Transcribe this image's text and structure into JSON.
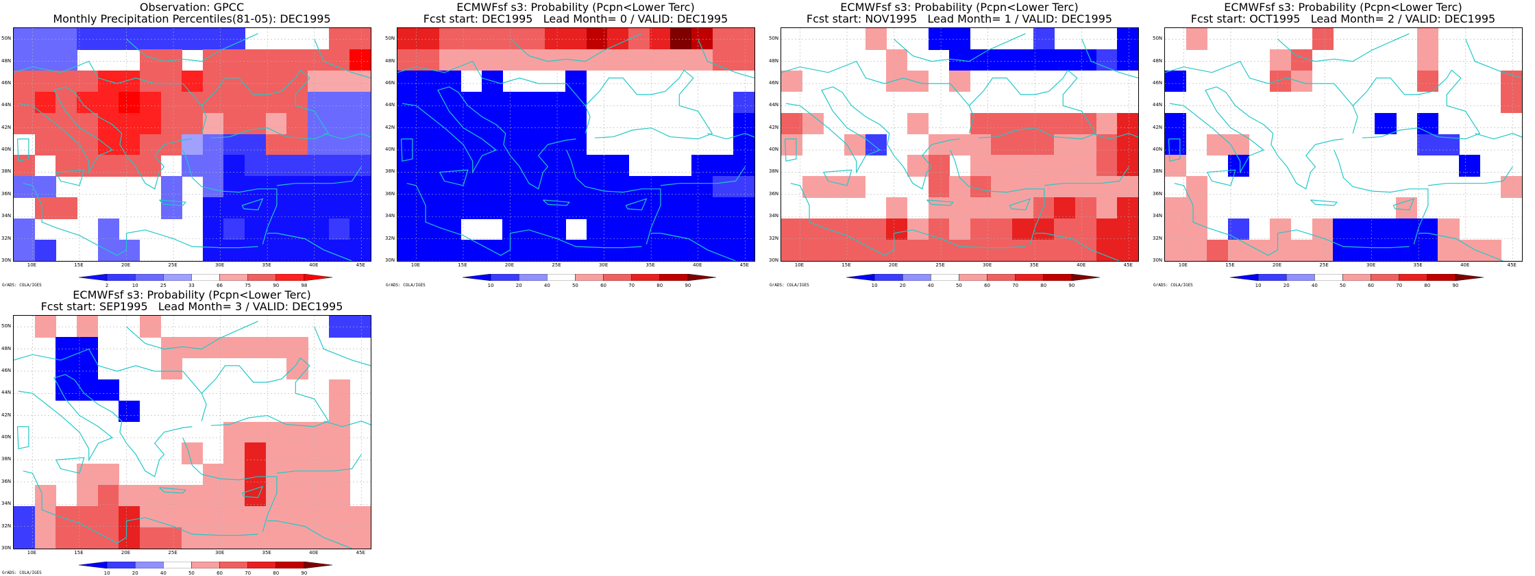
{
  "map_meta": {
    "lat_labels": [
      "50N",
      "48N",
      "46N",
      "44N",
      "42N",
      "40N",
      "38N",
      "36N",
      "34N",
      "32N",
      "30N"
    ],
    "lon_labels": [
      "10E",
      "15E",
      "20E",
      "25E",
      "30E",
      "35E",
      "40E",
      "45E"
    ],
    "lat_range": [
      30,
      51
    ],
    "lon_range": [
      8,
      46
    ],
    "grads_credit": "GrADS: COLA/IGES",
    "coast_color": "#20c8c8"
  },
  "color_scales": {
    "obs": {
      "labels": [
        "2",
        "10",
        "25",
        "33",
        "66",
        "75",
        "90",
        "98"
      ],
      "colors": [
        "#1010ff",
        "#3a3aff",
        "#6a6aff",
        "#a0a0ff",
        "#ffffff",
        "#f8a8a8",
        "#f06060",
        "#ff2020",
        "#ff0000"
      ]
    },
    "prob": {
      "labels": [
        "10",
        "20",
        "40",
        "50",
        "60",
        "70",
        "80",
        "90"
      ],
      "colors": [
        "#0000ff",
        "#3c3cff",
        "#9090ff",
        "#ffffff",
        "#f8a0a0",
        "#f06060",
        "#e82020",
        "#c00000",
        "#800000"
      ]
    }
  },
  "panels": [
    {
      "id": "obs",
      "title1": "Observation: GPCC",
      "title2": "Monthly Precipitation Percentiles(81-05): DEC1995",
      "scale": "obs",
      "grid": [
        [
          2,
          2,
          2,
          1,
          1,
          1,
          1,
          1,
          1,
          1,
          1,
          4,
          4,
          4,
          4,
          6,
          6
        ],
        [
          2,
          2,
          2,
          4,
          4,
          4,
          6,
          6,
          4,
          6,
          6,
          6,
          6,
          6,
          6,
          6,
          8
        ],
        [
          6,
          6,
          6,
          6,
          7,
          7,
          6,
          6,
          7,
          6,
          6,
          6,
          6,
          6,
          5,
          5,
          5
        ],
        [
          6,
          7,
          6,
          7,
          7,
          8,
          7,
          6,
          6,
          6,
          6,
          6,
          6,
          6,
          2,
          2,
          2
        ],
        [
          6,
          6,
          6,
          6,
          7,
          7,
          7,
          6,
          6,
          5,
          6,
          6,
          5,
          6,
          2,
          2,
          2
        ],
        [
          4,
          6,
          6,
          6,
          7,
          7,
          6,
          6,
          3,
          2,
          1,
          1,
          6,
          6,
          2,
          2,
          2
        ],
        [
          6,
          4,
          6,
          6,
          6,
          6,
          6,
          4,
          2,
          2,
          0,
          1,
          1,
          1,
          1,
          1,
          1
        ],
        [
          2,
          2,
          4,
          4,
          4,
          4,
          4,
          2,
          4,
          2,
          0,
          0,
          0,
          0,
          0,
          0,
          0
        ],
        [
          4,
          6,
          6,
          4,
          4,
          4,
          4,
          2,
          4,
          0,
          0,
          0,
          0,
          0,
          0,
          0,
          0
        ],
        [
          2,
          4,
          4,
          4,
          2,
          4,
          4,
          4,
          4,
          0,
          1,
          0,
          0,
          0,
          0,
          1,
          0
        ],
        [
          2,
          1,
          4,
          4,
          2,
          2,
          4,
          4,
          4,
          0,
          0,
          0,
          0,
          0,
          0,
          0,
          0
        ]
      ]
    },
    {
      "id": "lead0",
      "title1": "ECMWFsf s3: Probability (Pcpn<Lower Terc)",
      "title2": "Fcst start: DEC1995   Lead Month= 0 / VALID: DEC1995",
      "scale": "prob",
      "grid": [
        [
          6,
          6,
          5,
          5,
          5,
          5,
          5,
          6,
          6,
          7,
          6,
          5,
          6,
          8,
          7,
          5,
          5
        ],
        [
          5,
          5,
          4,
          4,
          4,
          4,
          4,
          4,
          4,
          4,
          4,
          4,
          4,
          4,
          4,
          5,
          5
        ],
        [
          0,
          0,
          0,
          3,
          0,
          3,
          3,
          3,
          0,
          3,
          3,
          3,
          3,
          3,
          3,
          3,
          3
        ],
        [
          0,
          0,
          0,
          0,
          0,
          0,
          0,
          0,
          0,
          3,
          3,
          3,
          3,
          3,
          3,
          3,
          1
        ],
        [
          0,
          0,
          0,
          0,
          0,
          0,
          0,
          0,
          0,
          3,
          3,
          3,
          3,
          3,
          3,
          3,
          0
        ],
        [
          0,
          0,
          0,
          0,
          0,
          0,
          0,
          0,
          0,
          3,
          3,
          3,
          3,
          3,
          3,
          3,
          0
        ],
        [
          0,
          0,
          0,
          0,
          0,
          0,
          0,
          0,
          0,
          0,
          0,
          3,
          3,
          3,
          0,
          0,
          0
        ],
        [
          0,
          0,
          0,
          0,
          0,
          0,
          0,
          0,
          0,
          0,
          0,
          0,
          0,
          0,
          0,
          1,
          1
        ],
        [
          0,
          0,
          0,
          0,
          0,
          0,
          0,
          0,
          0,
          0,
          0,
          0,
          0,
          0,
          0,
          0,
          0
        ],
        [
          0,
          0,
          0,
          3,
          3,
          0,
          0,
          0,
          3,
          0,
          0,
          0,
          0,
          0,
          0,
          0,
          0
        ],
        [
          0,
          0,
          0,
          0,
          0,
          0,
          0,
          0,
          0,
          0,
          0,
          0,
          0,
          0,
          0,
          0,
          0
        ]
      ]
    },
    {
      "id": "lead1",
      "title1": "ECMWFsf s3: Probability (Pcpn<Lower Terc)",
      "title2": "Fcst start: NOV1995   Lead Month= 1 / VALID: DEC1995",
      "scale": "prob",
      "grid": [
        [
          3,
          3,
          3,
          3,
          4,
          3,
          3,
          0,
          0,
          3,
          3,
          3,
          1,
          3,
          3,
          3,
          0
        ],
        [
          3,
          3,
          3,
          3,
          3,
          4,
          3,
          3,
          0,
          0,
          0,
          0,
          0,
          0,
          0,
          1,
          0
        ],
        [
          4,
          3,
          3,
          3,
          3,
          4,
          4,
          3,
          4,
          3,
          3,
          3,
          3,
          3,
          3,
          3,
          3
        ],
        [
          3,
          3,
          3,
          3,
          3,
          3,
          3,
          3,
          3,
          3,
          3,
          3,
          3,
          3,
          3,
          3,
          3
        ],
        [
          5,
          4,
          3,
          3,
          3,
          3,
          4,
          3,
          3,
          5,
          5,
          5,
          5,
          5,
          5,
          4,
          6
        ],
        [
          4,
          3,
          3,
          4,
          1,
          3,
          3,
          4,
          4,
          4,
          5,
          5,
          5,
          4,
          4,
          5,
          6
        ],
        [
          3,
          3,
          3,
          3,
          3,
          3,
          4,
          5,
          3,
          4,
          4,
          4,
          4,
          4,
          4,
          5,
          6
        ],
        [
          3,
          4,
          4,
          4,
          3,
          3,
          3,
          5,
          4,
          5,
          4,
          4,
          4,
          4,
          4,
          4,
          4
        ],
        [
          3,
          3,
          3,
          3,
          3,
          4,
          3,
          4,
          4,
          4,
          4,
          4,
          5,
          6,
          5,
          4,
          6
        ],
        [
          5,
          5,
          5,
          5,
          5,
          6,
          4,
          5,
          4,
          5,
          5,
          6,
          6,
          5,
          5,
          6,
          6
        ],
        [
          5,
          5,
          5,
          5,
          5,
          5,
          5,
          5,
          5,
          5,
          5,
          5,
          5,
          5,
          5,
          6,
          6
        ]
      ]
    },
    {
      "id": "lead2",
      "title1": "ECMWFsf s3: Probability (Pcpn<Lower Terc)",
      "title2": "Fcst start: OCT1995   Lead Month= 2 / VALID: DEC1995",
      "scale": "prob",
      "grid": [
        [
          3,
          4,
          3,
          3,
          3,
          3,
          3,
          5,
          3,
          3,
          3,
          3,
          4,
          3,
          3,
          3,
          3
        ],
        [
          3,
          3,
          3,
          3,
          3,
          4,
          5,
          3,
          3,
          3,
          3,
          3,
          4,
          3,
          3,
          3,
          3
        ],
        [
          0,
          3,
          3,
          3,
          3,
          5,
          4,
          3,
          3,
          3,
          3,
          3,
          5,
          3,
          3,
          3,
          5
        ],
        [
          3,
          3,
          3,
          3,
          3,
          3,
          3,
          3,
          3,
          3,
          3,
          3,
          3,
          3,
          3,
          3,
          5
        ],
        [
          0,
          3,
          3,
          3,
          3,
          3,
          3,
          3,
          3,
          3,
          0,
          3,
          0,
          3,
          3,
          3,
          3
        ],
        [
          0,
          3,
          4,
          4,
          3,
          3,
          3,
          3,
          3,
          3,
          3,
          3,
          1,
          1,
          3,
          3,
          3
        ],
        [
          4,
          3,
          3,
          0,
          3,
          3,
          3,
          3,
          3,
          3,
          3,
          3,
          3,
          3,
          0,
          3,
          3
        ],
        [
          3,
          4,
          3,
          3,
          3,
          3,
          3,
          3,
          3,
          3,
          3,
          3,
          3,
          3,
          3,
          3,
          4
        ],
        [
          4,
          4,
          3,
          3,
          3,
          3,
          3,
          3,
          3,
          3,
          3,
          4,
          3,
          3,
          3,
          3,
          3
        ],
        [
          4,
          4,
          3,
          1,
          3,
          4,
          3,
          4,
          0,
          0,
          0,
          0,
          0,
          4,
          3,
          3,
          3
        ],
        [
          4,
          4,
          5,
          4,
          4,
          4,
          4,
          4,
          0,
          0,
          0,
          0,
          0,
          4,
          4,
          4,
          3
        ]
      ]
    },
    {
      "id": "lead3",
      "title1": "ECMWFsf s3: Probability (Pcpn<Lower Terc)",
      "title2": "Fcst start: SEP1995   Lead Month= 3 / VALID: DEC1995",
      "scale": "prob",
      "grid": [
        [
          3,
          4,
          3,
          4,
          3,
          3,
          4,
          3,
          3,
          3,
          3,
          3,
          3,
          3,
          3,
          1,
          1
        ],
        [
          3,
          3,
          0,
          0,
          3,
          3,
          3,
          4,
          4,
          4,
          4,
          4,
          4,
          4,
          3,
          3,
          3
        ],
        [
          3,
          3,
          0,
          0,
          3,
          3,
          3,
          4,
          3,
          3,
          3,
          3,
          3,
          4,
          3,
          3,
          3
        ],
        [
          3,
          3,
          0,
          0,
          0,
          3,
          3,
          3,
          3,
          3,
          3,
          3,
          3,
          3,
          3,
          4,
          3
        ],
        [
          3,
          3,
          3,
          3,
          3,
          0,
          3,
          3,
          3,
          3,
          3,
          3,
          3,
          3,
          3,
          4,
          3
        ],
        [
          3,
          3,
          3,
          3,
          3,
          3,
          3,
          3,
          3,
          3,
          4,
          4,
          4,
          4,
          4,
          4,
          3
        ],
        [
          3,
          3,
          3,
          3,
          3,
          3,
          3,
          3,
          4,
          3,
          4,
          6,
          4,
          4,
          4,
          4,
          3
        ],
        [
          3,
          3,
          3,
          4,
          4,
          3,
          3,
          3,
          3,
          4,
          4,
          6,
          4,
          4,
          4,
          4,
          3
        ],
        [
          3,
          4,
          3,
          4,
          5,
          4,
          4,
          4,
          4,
          4,
          4,
          6,
          4,
          4,
          4,
          4,
          3
        ],
        [
          1,
          4,
          5,
          5,
          5,
          6,
          4,
          4,
          4,
          4,
          4,
          4,
          4,
          4,
          4,
          4,
          4
        ],
        [
          1,
          4,
          5,
          5,
          5,
          6,
          5,
          5,
          4,
          4,
          4,
          4,
          4,
          4,
          4,
          4,
          4
        ]
      ]
    }
  ]
}
